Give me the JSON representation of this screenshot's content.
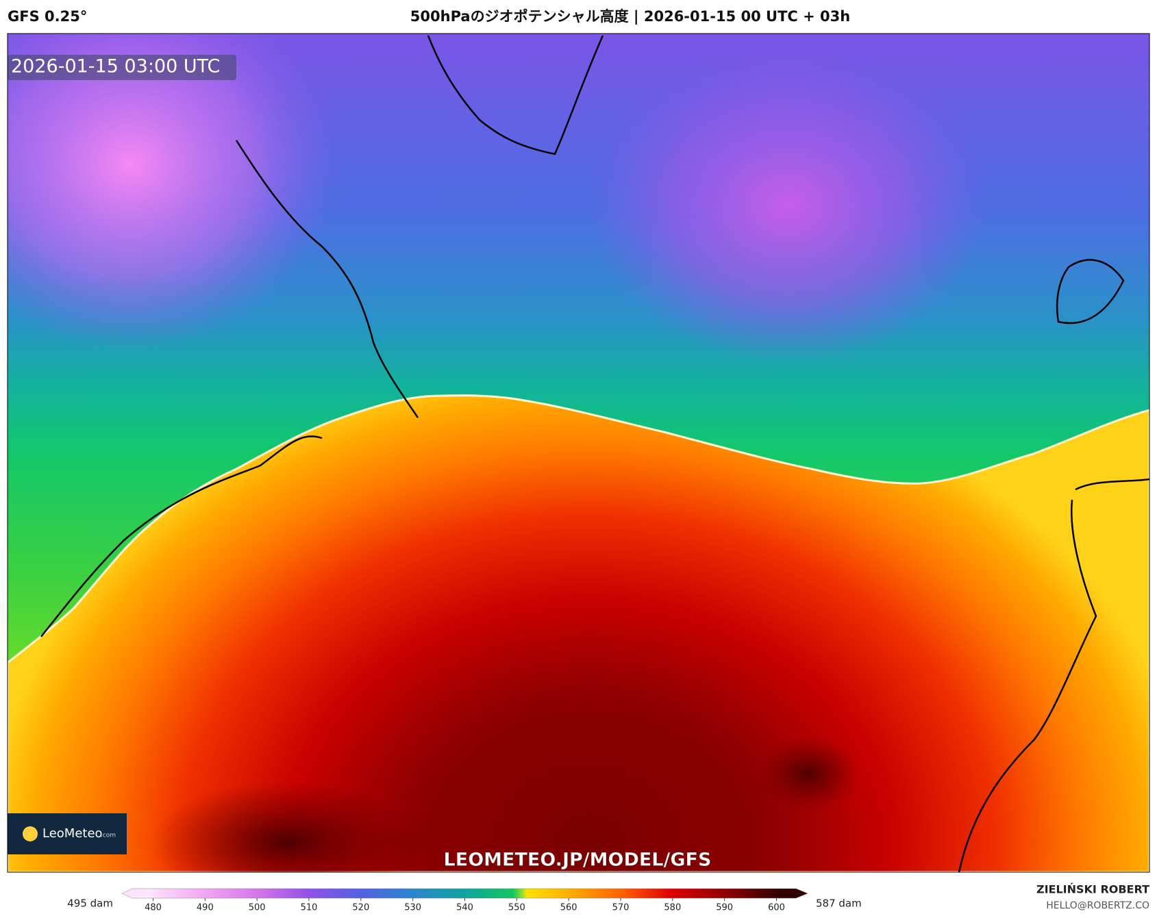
{
  "header": {
    "model": "GFS 0.25°",
    "title": "500hPaのジオポテンシャル高度 | 2026-01-15 00 UTC + 03h"
  },
  "map": {
    "timestamp": "2026-01-15 03:00 UTC",
    "watermark": "LEOMETEO.JP/MODEL/GFS",
    "logo_name": "LeoMeteo",
    "logo_suffix": ".com"
  },
  "colorbar": {
    "ticks": [
      480,
      490,
      500,
      510,
      520,
      530,
      540,
      550,
      560,
      570,
      580,
      590,
      600
    ],
    "min_label": "495 dam",
    "max_label": "587 dam"
  },
  "footer": {
    "author": "ZIELIŃSKI ROBERT",
    "email": "HELLO@ROBERTZ.CO"
  }
}
